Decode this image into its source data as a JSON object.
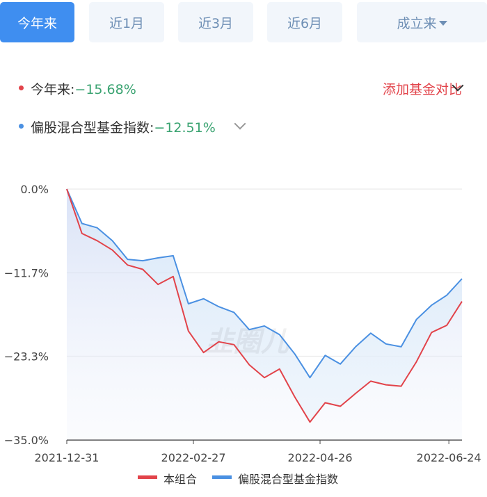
{
  "tabs": [
    {
      "label": "今年来",
      "active": true
    },
    {
      "label": "近1月",
      "active": false
    },
    {
      "label": "近3月",
      "active": false
    },
    {
      "label": "近6月",
      "active": false
    },
    {
      "label": "成立来",
      "active": false
    }
  ],
  "summary": {
    "portfolio_label": "今年来:",
    "portfolio_value": "−15.68%",
    "index_label": "偏股混合型基金指数:",
    "index_value": "−12.51%",
    "add_compare": "添加基金对比"
  },
  "colors": {
    "accent": "#3f8ef0",
    "portfolio": "#e2434a",
    "index": "#4a90e2",
    "positive_text": "#3aa371"
  },
  "chart_data": {
    "type": "line",
    "y_tick_labels": [
      "0.0%",
      "−11.7%",
      "−23.3%",
      "−35.0%"
    ],
    "y_ticks": [
      0,
      -11.7,
      -23.3,
      -35.0
    ],
    "ylim": [
      -35.0,
      0
    ],
    "x_tick_labels": [
      "2021-12-31",
      "2022-02-27",
      "2022-04-26",
      "2022-06-24"
    ],
    "x": [
      "2021-12-31",
      "2022-01-07",
      "2022-01-14",
      "2022-01-21",
      "2022-01-28",
      "2022-02-04",
      "2022-02-11",
      "2022-02-18",
      "2022-02-25",
      "2022-03-04",
      "2022-03-11",
      "2022-03-18",
      "2022-03-25",
      "2022-04-01",
      "2022-04-08",
      "2022-04-15",
      "2022-04-22",
      "2022-04-29",
      "2022-05-06",
      "2022-05-13",
      "2022-05-20",
      "2022-05-27",
      "2022-06-03",
      "2022-06-10",
      "2022-06-17",
      "2022-06-24",
      "2022-06-30"
    ],
    "series": [
      {
        "name": "本组合",
        "color": "#e2434a",
        "values": [
          0,
          -6.2,
          -7.2,
          -8.5,
          -10.6,
          -11.2,
          -13.3,
          -12.2,
          -19.8,
          -22.8,
          -21.3,
          -21.7,
          -24.5,
          -26.3,
          -25.1,
          -29.0,
          -32.5,
          -29.8,
          -30.3,
          -28.5,
          -26.8,
          -27.3,
          -27.5,
          -24.1,
          -20.0,
          -19.0,
          -15.68
        ]
      },
      {
        "name": "偏股混合型基金指数",
        "color": "#4a90e2",
        "values": [
          0,
          -4.8,
          -5.4,
          -7.2,
          -9.8,
          -10.0,
          -9.6,
          -9.3,
          -16.0,
          -15.3,
          -16.4,
          -17.2,
          -19.6,
          -19.1,
          -20.3,
          -23.0,
          -26.3,
          -23.2,
          -24.4,
          -22.0,
          -20.1,
          -21.6,
          -22.0,
          -18.2,
          -16.2,
          -14.8,
          -12.51
        ]
      }
    ],
    "watermark": "韭圈儿",
    "legend_position": "bottom"
  }
}
